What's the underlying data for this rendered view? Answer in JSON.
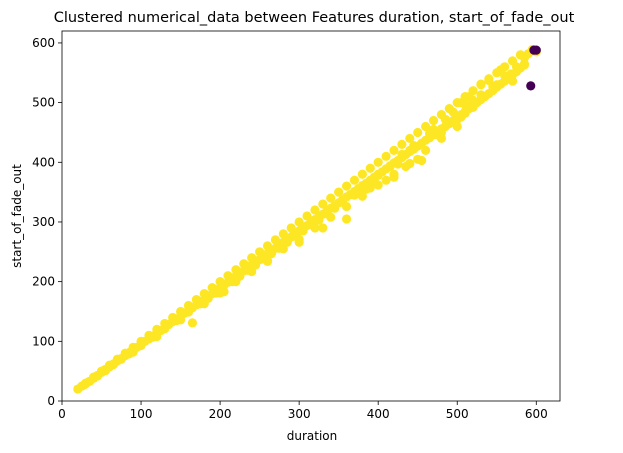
{
  "chart_data": {
    "type": "scatter",
    "title": "Clustered numerical_data between Features duration, start_of_fade_out",
    "xlabel": "duration",
    "ylabel": "start_of_fade_out",
    "xlim": [
      0,
      630
    ],
    "ylim": [
      0,
      620
    ],
    "xticks": [
      "0",
      "100",
      "200",
      "300",
      "400",
      "500",
      "600"
    ],
    "yticks": [
      "0",
      "100",
      "200",
      "300",
      "400",
      "500",
      "600"
    ],
    "grid": false,
    "legend": "none",
    "colors": {
      "cluster_0": "#440154",
      "cluster_1": "#fde725"
    },
    "series": [
      {
        "cluster": 1,
        "points": [
          [
            25,
            25
          ],
          [
            30,
            29
          ],
          [
            35,
            33
          ],
          [
            40,
            38
          ],
          [
            45,
            43
          ],
          [
            50,
            48
          ],
          [
            55,
            53
          ],
          [
            60,
            57
          ],
          [
            65,
            62
          ],
          [
            70,
            67
          ],
          [
            75,
            71
          ],
          [
            80,
            76
          ],
          [
            85,
            81
          ],
          [
            90,
            86
          ],
          [
            95,
            90
          ],
          [
            100,
            95
          ],
          [
            105,
            100
          ],
          [
            110,
            104
          ],
          [
            115,
            109
          ],
          [
            120,
            114
          ],
          [
            125,
            118
          ],
          [
            130,
            123
          ],
          [
            135,
            128
          ],
          [
            140,
            133
          ],
          [
            145,
            137
          ],
          [
            150,
            142
          ],
          [
            155,
            147
          ],
          [
            160,
            152
          ],
          [
            165,
            156
          ],
          [
            170,
            161
          ],
          [
            175,
            166
          ],
          [
            180,
            171
          ],
          [
            185,
            175
          ],
          [
            190,
            180
          ],
          [
            195,
            185
          ],
          [
            200,
            190
          ],
          [
            205,
            194
          ],
          [
            210,
            199
          ],
          [
            215,
            204
          ],
          [
            220,
            209
          ],
          [
            225,
            213
          ],
          [
            230,
            218
          ],
          [
            235,
            223
          ],
          [
            240,
            228
          ],
          [
            245,
            232
          ],
          [
            250,
            237
          ],
          [
            255,
            242
          ],
          [
            260,
            247
          ],
          [
            265,
            251
          ],
          [
            270,
            256
          ],
          [
            275,
            261
          ],
          [
            280,
            266
          ],
          [
            285,
            270
          ],
          [
            290,
            275
          ],
          [
            295,
            280
          ],
          [
            300,
            285
          ],
          [
            305,
            289
          ],
          [
            310,
            294
          ],
          [
            315,
            299
          ],
          [
            320,
            304
          ],
          [
            325,
            308
          ],
          [
            330,
            313
          ],
          [
            335,
            318
          ],
          [
            340,
            323
          ],
          [
            345,
            327
          ],
          [
            350,
            332
          ],
          [
            355,
            337
          ],
          [
            360,
            342
          ],
          [
            365,
            346
          ],
          [
            370,
            351
          ],
          [
            375,
            356
          ],
          [
            380,
            361
          ],
          [
            385,
            365
          ],
          [
            390,
            370
          ],
          [
            395,
            375
          ],
          [
            400,
            380
          ],
          [
            405,
            384
          ],
          [
            410,
            389
          ],
          [
            415,
            394
          ],
          [
            420,
            399
          ],
          [
            425,
            403
          ],
          [
            430,
            408
          ],
          [
            435,
            413
          ],
          [
            440,
            418
          ],
          [
            445,
            422
          ],
          [
            450,
            427
          ],
          [
            455,
            432
          ],
          [
            460,
            437
          ],
          [
            465,
            441
          ],
          [
            470,
            446
          ],
          [
            475,
            451
          ],
          [
            480,
            456
          ],
          [
            485,
            460
          ],
          [
            490,
            465
          ],
          [
            495,
            470
          ],
          [
            500,
            475
          ],
          [
            505,
            480
          ],
          [
            510,
            485
          ],
          [
            515,
            490
          ],
          [
            520,
            495
          ],
          [
            525,
            500
          ],
          [
            530,
            505
          ],
          [
            535,
            510
          ],
          [
            540,
            515
          ],
          [
            545,
            520
          ],
          [
            550,
            526
          ],
          [
            555,
            531
          ],
          [
            560,
            536
          ],
          [
            565,
            541
          ],
          [
            570,
            547
          ],
          [
            575,
            552
          ],
          [
            580,
            558
          ],
          [
            585,
            563
          ],
          [
            20,
            20
          ],
          [
            30,
            30
          ],
          [
            40,
            40
          ],
          [
            50,
            50
          ],
          [
            60,
            60
          ],
          [
            70,
            70
          ],
          [
            80,
            80
          ],
          [
            90,
            90
          ],
          [
            100,
            100
          ],
          [
            110,
            110
          ],
          [
            120,
            120
          ],
          [
            130,
            130
          ],
          [
            140,
            140
          ],
          [
            150,
            150
          ],
          [
            160,
            160
          ],
          [
            170,
            170
          ],
          [
            180,
            180
          ],
          [
            190,
            190
          ],
          [
            200,
            200
          ],
          [
            210,
            210
          ],
          [
            220,
            220
          ],
          [
            230,
            230
          ],
          [
            240,
            240
          ],
          [
            250,
            250
          ],
          [
            260,
            260
          ],
          [
            270,
            270
          ],
          [
            280,
            280
          ],
          [
            290,
            290
          ],
          [
            300,
            300
          ],
          [
            310,
            310
          ],
          [
            320,
            320
          ],
          [
            330,
            330
          ],
          [
            340,
            340
          ],
          [
            350,
            350
          ],
          [
            360,
            360
          ],
          [
            370,
            370
          ],
          [
            380,
            380
          ],
          [
            390,
            390
          ],
          [
            400,
            400
          ],
          [
            410,
            410
          ],
          [
            420,
            420
          ],
          [
            430,
            430
          ],
          [
            440,
            440
          ],
          [
            450,
            450
          ],
          [
            460,
            460
          ],
          [
            470,
            470
          ],
          [
            480,
            480
          ],
          [
            490,
            490
          ],
          [
            500,
            500
          ],
          [
            510,
            510
          ],
          [
            520,
            520
          ],
          [
            530,
            530
          ],
          [
            540,
            540
          ],
          [
            550,
            550
          ],
          [
            560,
            560
          ],
          [
            570,
            570
          ],
          [
            580,
            580
          ],
          [
            90,
            82
          ],
          [
            120,
            108
          ],
          [
            150,
            136
          ],
          [
            180,
            163
          ],
          [
            200,
            181
          ],
          [
            220,
            200
          ],
          [
            240,
            217
          ],
          [
            260,
            235
          ],
          [
            280,
            255
          ],
          [
            300,
            271
          ],
          [
            320,
            290
          ],
          [
            340,
            308
          ],
          [
            360,
            326
          ],
          [
            380,
            343
          ],
          [
            400,
            362
          ],
          [
            420,
            380
          ],
          [
            440,
            398
          ],
          [
            460,
            420
          ],
          [
            480,
            440
          ],
          [
            500,
            460
          ],
          [
            165,
            131
          ],
          [
            205,
            183
          ],
          [
            260,
            234
          ],
          [
            300,
            266
          ],
          [
            330,
            290
          ],
          [
            360,
            305
          ],
          [
            410,
            370
          ],
          [
            420,
            375
          ],
          [
            435,
            393
          ],
          [
            450,
            405
          ],
          [
            455,
            403
          ],
          [
            475,
            446
          ],
          [
            480,
            450
          ],
          [
            490,
            465
          ],
          [
            500,
            472
          ],
          [
            505,
            476
          ],
          [
            510,
            482
          ],
          [
            520,
            504
          ],
          [
            530,
            531
          ],
          [
            540,
            537
          ],
          [
            545,
            527
          ],
          [
            555,
            555
          ],
          [
            560,
            545
          ],
          [
            565,
            540
          ],
          [
            568,
            548
          ],
          [
            570,
            536
          ],
          [
            575,
            560
          ],
          [
            585,
            565
          ],
          [
            590,
            582
          ],
          [
            580,
            580
          ],
          [
            585,
            575
          ],
          [
            595,
            589
          ],
          [
            600,
            585
          ],
          [
            550,
            530
          ],
          [
            530,
            513
          ],
          [
            520,
            492
          ],
          [
            515,
            510
          ],
          [
            510,
            497
          ],
          [
            505,
            500
          ],
          [
            495,
            484
          ],
          [
            485,
            472
          ],
          [
            470,
            455
          ],
          [
            465,
            448
          ],
          [
            445,
            428
          ],
          [
            440,
            420
          ],
          [
            430,
            413
          ],
          [
            425,
            397
          ],
          [
            415,
            393
          ],
          [
            400,
            378
          ],
          [
            395,
            369
          ],
          [
            390,
            357
          ],
          [
            385,
            355
          ],
          [
            375,
            352
          ],
          [
            370,
            345
          ],
          [
            355,
            333
          ],
          [
            345,
            323
          ],
          [
            335,
            314
          ],
          [
            325,
            303
          ],
          [
            315,
            296
          ],
          [
            305,
            285
          ],
          [
            295,
            276
          ],
          [
            285,
            266
          ],
          [
            275,
            256
          ],
          [
            265,
            247
          ],
          [
            255,
            238
          ],
          [
            245,
            228
          ],
          [
            235,
            219
          ],
          [
            225,
            209
          ],
          [
            215,
            200
          ],
          [
            195,
            181
          ],
          [
            185,
            172
          ],
          [
            175,
            163
          ],
          [
            160,
            149
          ],
          [
            145,
            135
          ],
          [
            130,
            121
          ],
          [
            115,
            107
          ],
          [
            100,
            93
          ],
          [
            85,
            79
          ],
          [
            75,
            70
          ],
          [
            65,
            61
          ],
          [
            55,
            51
          ],
          [
            45,
            42
          ],
          [
            35,
            33
          ],
          [
            28,
            27
          ]
        ]
      },
      {
        "cluster": 0,
        "points": [
          [
            597,
            588
          ],
          [
            600,
            588
          ],
          [
            593,
            528
          ]
        ]
      }
    ]
  }
}
